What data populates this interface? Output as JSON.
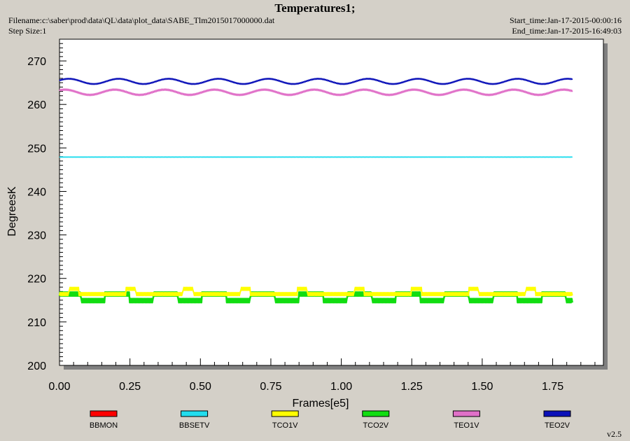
{
  "header": {
    "title": "Temperatures1;",
    "filename": "Filename:c:\\saber\\prod\\data\\QL\\data\\plot_data\\SABE_Tlm2015017000000.dat",
    "step_size": "Step Size:1",
    "start_time": "Start_time:Jan-17-2015-00:00:16",
    "end_time": "End_time:Jan-17-2015-16:49:03"
  },
  "version": "v2.5",
  "chart_data": {
    "type": "line",
    "title": "Temperatures1;",
    "xlabel": "Frames[e5]",
    "ylabel": "DegreesK",
    "xlim": [
      0,
      1.93
    ],
    "ylim": [
      200,
      275
    ],
    "x_ticks": [
      "0.00",
      "0.25",
      "0.50",
      "0.75",
      "1.00",
      "1.25",
      "1.50",
      "1.75"
    ],
    "y_ticks": [
      "200",
      "210",
      "220",
      "230",
      "240",
      "250",
      "260",
      "270"
    ],
    "grid": false,
    "legend_position": "bottom",
    "x_range_data": [
      0,
      1.82
    ],
    "series": [
      {
        "name": "BBMON",
        "color": "#ff0000",
        "values": []
      },
      {
        "name": "BBSETV",
        "color": "#22ddee",
        "mean": 247.9,
        "min": 247.8,
        "max": 248.0
      },
      {
        "name": "TCO1V",
        "color": "#ffff00",
        "mean": 216.4,
        "min": 215.8,
        "max": 218.0
      },
      {
        "name": "TCO2V",
        "color": "#11dd11",
        "mean": 215.5,
        "min": 214.0,
        "max": 217.0
      },
      {
        "name": "TEO1V",
        "color": "#e070c8",
        "mean": 262.8,
        "min": 261.8,
        "max": 263.8
      },
      {
        "name": "TEO2V",
        "color": "#0a10b8",
        "mean": 265.3,
        "min": 264.5,
        "max": 266.2
      }
    ]
  }
}
